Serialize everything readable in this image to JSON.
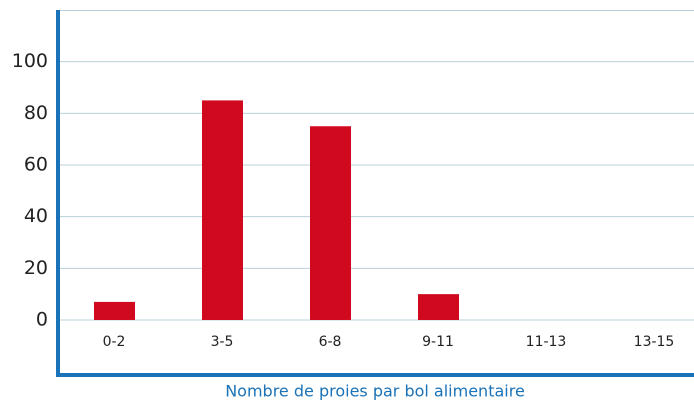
{
  "chart_data": {
    "type": "bar",
    "x_label": "Nombre de proies par bol alimentaire",
    "categories": [
      "0-2",
      "3-5",
      "6-8",
      "9-11",
      "11-13",
      "13-15"
    ],
    "values": [
      7,
      85,
      75,
      10,
      0,
      0
    ],
    "color": "#d0091f",
    "ylim": [
      -21.3,
      120
    ],
    "yticks": [
      0,
      20,
      40,
      60,
      80,
      100
    ],
    "grid": true
  }
}
